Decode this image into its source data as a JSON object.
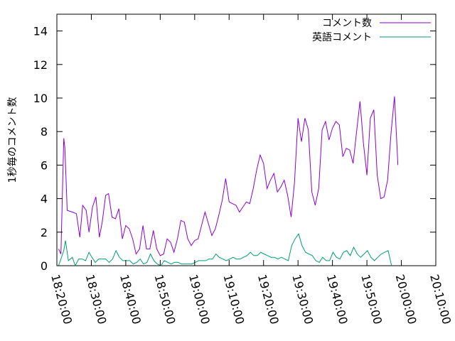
{
  "chart_data": {
    "type": "line",
    "title": "",
    "xlabel": "",
    "ylabel": "1秒毎のコメント数",
    "x_ticks": [
      "18:20:00",
      "18:30:00",
      "18:40:00",
      "18:50:00",
      "19:00:00",
      "19:10:00",
      "19:20:00",
      "19:30:00",
      "19:40:00",
      "19:50:00",
      "20:00:00",
      "20:10:00"
    ],
    "y_ticks": [
      "0",
      "2",
      "4",
      "6",
      "8",
      "10",
      "12",
      "14"
    ],
    "ylim": [
      0,
      15
    ],
    "xlim": [
      "18:20:00",
      "20:10:00"
    ],
    "legend_position": "top-right",
    "grid": false,
    "series": [
      {
        "name": "コメント数",
        "color": "#8B00D3",
        "points": [
          [
            "18:20:30",
            1.0
          ],
          [
            "18:21:10",
            0.7
          ],
          [
            "18:22:00",
            7.6
          ],
          [
            "18:22:20",
            7.0
          ],
          [
            "18:23:00",
            3.3
          ],
          [
            "18:24:30",
            3.2
          ],
          [
            "18:25:40",
            3.1
          ],
          [
            "18:26:40",
            1.7
          ],
          [
            "18:27:30",
            3.6
          ],
          [
            "18:28:30",
            3.3
          ],
          [
            "18:29:20",
            2.0
          ],
          [
            "18:30:20",
            3.5
          ],
          [
            "18:31:20",
            4.1
          ],
          [
            "18:32:20",
            1.7
          ],
          [
            "18:33:10",
            2.6
          ],
          [
            "18:34:10",
            4.2
          ],
          [
            "18:35:00",
            4.3
          ],
          [
            "18:36:00",
            2.9
          ],
          [
            "18:37:00",
            2.8
          ],
          [
            "18:38:00",
            3.4
          ],
          [
            "18:39:00",
            1.6
          ],
          [
            "18:40:00",
            2.4
          ],
          [
            "18:41:00",
            2.2
          ],
          [
            "18:42:00",
            1.6
          ],
          [
            "18:43:00",
            0.7
          ],
          [
            "18:44:00",
            1.0
          ],
          [
            "18:45:00",
            2.4
          ],
          [
            "18:46:00",
            1.0
          ],
          [
            "18:47:00",
            1.0
          ],
          [
            "18:48:00",
            2.1
          ],
          [
            "18:49:00",
            1.0
          ],
          [
            "18:50:00",
            0.6
          ],
          [
            "18:51:00",
            0.7
          ],
          [
            "18:52:00",
            1.6
          ],
          [
            "18:53:00",
            1.4
          ],
          [
            "18:54:00",
            0.8
          ],
          [
            "18:55:00",
            1.6
          ],
          [
            "18:56:00",
            2.7
          ],
          [
            "18:57:00",
            2.6
          ],
          [
            "18:58:00",
            1.6
          ],
          [
            "18:59:00",
            1.2
          ],
          [
            "19:00:00",
            1.5
          ],
          [
            "19:01:00",
            1.6
          ],
          [
            "19:02:00",
            2.4
          ],
          [
            "19:03:00",
            3.2
          ],
          [
            "19:04:00",
            2.5
          ],
          [
            "19:05:00",
            1.8
          ],
          [
            "19:06:00",
            2.2
          ],
          [
            "19:07:00",
            3.0
          ],
          [
            "19:08:00",
            3.9
          ],
          [
            "19:09:00",
            5.2
          ],
          [
            "19:10:00",
            3.8
          ],
          [
            "19:11:00",
            3.7
          ],
          [
            "19:12:00",
            3.6
          ],
          [
            "19:13:00",
            3.2
          ],
          [
            "19:14:00",
            3.5
          ],
          [
            "19:15:00",
            3.8
          ],
          [
            "19:16:00",
            3.7
          ],
          [
            "19:17:00",
            4.6
          ],
          [
            "19:18:00",
            5.7
          ],
          [
            "19:19:00",
            6.6
          ],
          [
            "19:20:00",
            6.1
          ],
          [
            "19:21:00",
            4.6
          ],
          [
            "19:22:00",
            5.1
          ],
          [
            "19:23:00",
            5.5
          ],
          [
            "19:24:00",
            4.4
          ],
          [
            "19:25:00",
            4.7
          ],
          [
            "19:26:00",
            5.1
          ],
          [
            "19:27:00",
            4.2
          ],
          [
            "19:28:00",
            2.9
          ],
          [
            "19:29:00",
            5.0
          ],
          [
            "19:30:00",
            8.8
          ],
          [
            "19:31:00",
            7.4
          ],
          [
            "19:32:00",
            8.8
          ],
          [
            "19:33:00",
            8.1
          ],
          [
            "19:34:00",
            4.4
          ],
          [
            "19:35:00",
            3.6
          ],
          [
            "19:36:00",
            4.6
          ],
          [
            "19:37:00",
            8.1
          ],
          [
            "19:38:00",
            8.6
          ],
          [
            "19:39:00",
            7.5
          ],
          [
            "19:40:00",
            8.2
          ],
          [
            "19:41:00",
            8.6
          ],
          [
            "19:42:00",
            8.4
          ],
          [
            "19:43:00",
            6.5
          ],
          [
            "19:44:00",
            7.0
          ],
          [
            "19:45:00",
            6.9
          ],
          [
            "19:46:00",
            6.1
          ],
          [
            "19:47:00",
            8.0
          ],
          [
            "19:48:00",
            9.8
          ],
          [
            "19:49:00",
            7.3
          ],
          [
            "19:50:00",
            5.4
          ],
          [
            "19:51:00",
            8.8
          ],
          [
            "19:52:00",
            9.3
          ],
          [
            "19:53:00",
            5.4
          ],
          [
            "19:54:00",
            4.0
          ],
          [
            "19:55:00",
            4.1
          ],
          [
            "19:56:00",
            5.1
          ],
          [
            "19:57:00",
            7.9
          ],
          [
            "19:58:00",
            10.1
          ],
          [
            "19:59:00",
            6.0
          ]
        ]
      },
      {
        "name": "英語コメント",
        "color": "#009E73",
        "points": [
          [
            "18:20:30",
            0.0
          ],
          [
            "18:21:10",
            0.4
          ],
          [
            "18:22:00",
            0.9
          ],
          [
            "18:22:30",
            1.5
          ],
          [
            "18:23:20",
            0.3
          ],
          [
            "18:24:30",
            0.5
          ],
          [
            "18:25:20",
            0.0
          ],
          [
            "18:26:20",
            0.4
          ],
          [
            "18:27:20",
            0.4
          ],
          [
            "18:28:20",
            0.3
          ],
          [
            "18:29:20",
            0.8
          ],
          [
            "18:30:10",
            0.5
          ],
          [
            "18:31:10",
            0.2
          ],
          [
            "18:32:10",
            0.4
          ],
          [
            "18:33:10",
            0.4
          ],
          [
            "18:34:10",
            0.4
          ],
          [
            "18:35:10",
            0.2
          ],
          [
            "18:36:10",
            0.4
          ],
          [
            "18:37:10",
            0.9
          ],
          [
            "18:38:10",
            0.5
          ],
          [
            "18:39:10",
            0.3
          ],
          [
            "18:40:10",
            0.3
          ],
          [
            "18:41:10",
            0.3
          ],
          [
            "18:42:10",
            0.1
          ],
          [
            "18:43:10",
            0.2
          ],
          [
            "18:44:10",
            0.4
          ],
          [
            "18:45:10",
            0.1
          ],
          [
            "18:46:10",
            0.2
          ],
          [
            "18:47:10",
            0.7
          ],
          [
            "18:48:10",
            0.3
          ],
          [
            "18:49:10",
            0.1
          ],
          [
            "18:50:10",
            0.0
          ],
          [
            "18:51:10",
            0.3
          ],
          [
            "18:52:10",
            0.2
          ],
          [
            "18:53:10",
            0.1
          ],
          [
            "18:54:10",
            0.2
          ],
          [
            "18:55:10",
            0.2
          ],
          [
            "18:56:10",
            0.1
          ],
          [
            "18:57:10",
            0.1
          ],
          [
            "18:58:10",
            0.1
          ],
          [
            "18:59:10",
            0.1
          ],
          [
            "19:00:10",
            0.2
          ],
          [
            "19:01:10",
            0.3
          ],
          [
            "19:02:10",
            0.3
          ],
          [
            "19:03:10",
            0.3
          ],
          [
            "19:04:10",
            0.4
          ],
          [
            "19:05:10",
            0.4
          ],
          [
            "19:06:10",
            0.7
          ],
          [
            "19:07:10",
            0.5
          ],
          [
            "19:08:10",
            0.4
          ],
          [
            "19:09:10",
            0.3
          ],
          [
            "19:10:10",
            0.4
          ],
          [
            "19:11:10",
            0.5
          ],
          [
            "19:12:10",
            0.4
          ],
          [
            "19:13:10",
            0.4
          ],
          [
            "19:14:10",
            0.5
          ],
          [
            "19:15:10",
            0.6
          ],
          [
            "19:16:10",
            0.8
          ],
          [
            "19:17:10",
            0.6
          ],
          [
            "19:18:10",
            0.6
          ],
          [
            "19:19:10",
            0.8
          ],
          [
            "19:20:10",
            0.7
          ],
          [
            "19:21:10",
            0.6
          ],
          [
            "19:22:10",
            0.5
          ],
          [
            "19:23:10",
            0.5
          ],
          [
            "19:24:10",
            0.4
          ],
          [
            "19:25:10",
            0.5
          ],
          [
            "19:26:10",
            0.4
          ],
          [
            "19:27:10",
            0.3
          ],
          [
            "19:28:10",
            1.2
          ],
          [
            "19:29:10",
            1.6
          ],
          [
            "19:30:10",
            1.9
          ],
          [
            "19:31:10",
            1.2
          ],
          [
            "19:32:10",
            0.8
          ],
          [
            "19:33:10",
            0.7
          ],
          [
            "19:34:10",
            0.6
          ],
          [
            "19:35:10",
            0.3
          ],
          [
            "19:36:10",
            0.2
          ],
          [
            "19:37:10",
            0.5
          ],
          [
            "19:38:10",
            0.3
          ],
          [
            "19:39:10",
            0.3
          ],
          [
            "19:40:10",
            0.8
          ],
          [
            "19:41:10",
            0.5
          ],
          [
            "19:42:10",
            0.4
          ],
          [
            "19:43:10",
            0.8
          ],
          [
            "19:44:10",
            0.9
          ],
          [
            "19:45:10",
            0.6
          ],
          [
            "19:46:10",
            1.1
          ],
          [
            "19:47:10",
            0.7
          ],
          [
            "19:48:10",
            0.5
          ],
          [
            "19:49:10",
            0.7
          ],
          [
            "19:50:10",
            0.9
          ],
          [
            "19:51:10",
            0.5
          ],
          [
            "19:52:10",
            0.3
          ],
          [
            "19:53:10",
            0.5
          ],
          [
            "19:54:10",
            0.7
          ],
          [
            "19:55:10",
            0.8
          ],
          [
            "19:56:10",
            0.9
          ],
          [
            "19:57:10",
            0.0
          ]
        ]
      }
    ]
  }
}
